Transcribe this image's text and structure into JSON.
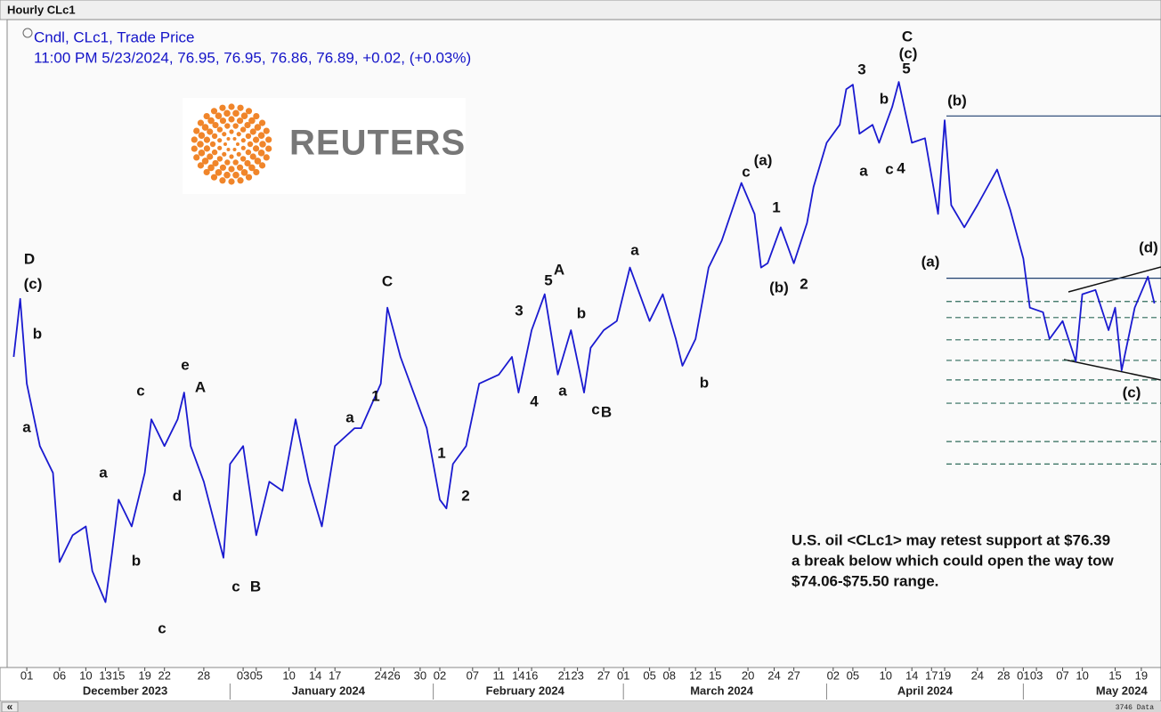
{
  "chart_data": {
    "type": "line",
    "title": "Hourly CLc1",
    "subtitle": "Cndl, CLc1, Trade Price",
    "quote": "11:00 PM 5/23/2024, 76.95, 76.95, 76.86, 76.89, +0.02, (+0.03%)",
    "logo": "REUTERS",
    "status": "3746 Data",
    "scroll_button": "«",
    "x": [
      "2023-11-29",
      "2023-11-30",
      "2023-12-01",
      "2023-12-03",
      "2023-12-05",
      "2023-12-06",
      "2023-12-08",
      "2023-12-10",
      "2023-12-11",
      "2023-12-13",
      "2023-12-14",
      "2023-12-15",
      "2023-12-17",
      "2023-12-19",
      "2023-12-20",
      "2023-12-22",
      "2023-12-24",
      "2023-12-25",
      "2023-12-26",
      "2023-12-28",
      "2023-12-31",
      "2024-01-01",
      "2024-01-03",
      "2024-01-05",
      "2024-01-07",
      "2024-01-09",
      "2024-01-11",
      "2024-01-13",
      "2024-01-15",
      "2024-01-17",
      "2024-01-20",
      "2024-01-21",
      "2024-01-24",
      "2024-01-25",
      "2024-01-27",
      "2024-01-29",
      "2024-01-31",
      "2024-02-02",
      "2024-02-03",
      "2024-02-04",
      "2024-02-06",
      "2024-02-08",
      "2024-02-11",
      "2024-02-13",
      "2024-02-14",
      "2024-02-16",
      "2024-02-17",
      "2024-02-18",
      "2024-02-20",
      "2024-02-22",
      "2024-02-24",
      "2024-02-25",
      "2024-02-27",
      "2024-02-29",
      "2024-03-02",
      "2024-03-03",
      "2024-03-05",
      "2024-03-07",
      "2024-03-09",
      "2024-03-10",
      "2024-03-12",
      "2024-03-14",
      "2024-03-16",
      "2024-03-19",
      "2024-03-21",
      "2024-03-22",
      "2024-03-23",
      "2024-03-25",
      "2024-03-26",
      "2024-03-27",
      "2024-03-29",
      "2024-03-30",
      "2024-04-01",
      "2024-04-03",
      "2024-04-04",
      "2024-04-05",
      "2024-04-06",
      "2024-04-08",
      "2024-04-09",
      "2024-04-11",
      "2024-04-12",
      "2024-04-14",
      "2024-04-16",
      "2024-04-18",
      "2024-04-19",
      "2024-04-20",
      "2024-04-22",
      "2024-04-24",
      "2024-04-27",
      "2024-04-29",
      "2024-05-01",
      "2024-05-02",
      "2024-05-04",
      "2024-05-05",
      "2024-05-07",
      "2024-05-09",
      "2024-05-10",
      "2024-05-12",
      "2024-05-14",
      "2024-05-15",
      "2024-05-16",
      "2024-05-18",
      "2024-05-20",
      "2024-05-21"
    ],
    "series": [
      {
        "name": "CLc1",
        "color": "#1a1ad0",
        "values": [
          77.33,
          79.5,
          76.33,
          74.0,
          73.0,
          69.67,
          70.67,
          71.0,
          69.33,
          68.17,
          70.0,
          72.0,
          71.0,
          73.0,
          75.0,
          74.0,
          75.0,
          76.0,
          74.0,
          72.67,
          69.83,
          73.33,
          74.0,
          70.67,
          72.67,
          72.33,
          75.0,
          72.67,
          71.0,
          74.0,
          74.67,
          74.67,
          76.33,
          79.17,
          77.33,
          76.0,
          74.67,
          72.0,
          71.67,
          73.33,
          74.0,
          76.33,
          76.67,
          77.33,
          76.0,
          78.33,
          79.0,
          79.67,
          76.67,
          78.33,
          76.0,
          77.67,
          78.33,
          78.67,
          80.67,
          80.0,
          78.67,
          79.67,
          78.0,
          77.0,
          78.0,
          80.67,
          81.67,
          83.83,
          82.67,
          80.67,
          80.83,
          82.17,
          81.5,
          80.83,
          82.33,
          83.67,
          85.33,
          86.0,
          87.33,
          87.5,
          85.67,
          86.0,
          85.33,
          86.67,
          87.6,
          85.33,
          85.5,
          82.67,
          86.17,
          83.0,
          82.17,
          83.0,
          84.33,
          82.83,
          81.0,
          79.17,
          79.0,
          78.0,
          78.67,
          77.17,
          79.67,
          79.83,
          78.33,
          79.17,
          76.83,
          79.17,
          80.33,
          79.33
        ]
      }
    ],
    "xlim": [
      "2023-11-28",
      "2024-05-22"
    ],
    "ylim": [
      65.73,
      89.93
    ],
    "xticks": [
      {
        "value": "2023-12-01",
        "label": "01"
      },
      {
        "value": "2023-12-06",
        "label": "06"
      },
      {
        "value": "2023-12-10",
        "label": "10"
      },
      {
        "value": "2023-12-13",
        "label": "13"
      },
      {
        "value": "2023-12-15",
        "label": "15"
      },
      {
        "value": "2023-12-19",
        "label": "19"
      },
      {
        "value": "2023-12-22",
        "label": "22"
      },
      {
        "value": "2023-12-28",
        "label": "28"
      },
      {
        "value": "2024-01-03",
        "label": "03"
      },
      {
        "value": "2024-01-05",
        "label": "05"
      },
      {
        "value": "2024-01-10",
        "label": "10"
      },
      {
        "value": "2024-01-14",
        "label": "14"
      },
      {
        "value": "2024-01-17",
        "label": "17"
      },
      {
        "value": "2024-01-24",
        "label": "24"
      },
      {
        "value": "2024-01-26",
        "label": "26"
      },
      {
        "value": "2024-01-30",
        "label": "30"
      },
      {
        "value": "2024-02-02",
        "label": "02"
      },
      {
        "value": "2024-02-07",
        "label": "07"
      },
      {
        "value": "2024-02-11",
        "label": "11"
      },
      {
        "value": "2024-02-14",
        "label": "14"
      },
      {
        "value": "2024-02-16",
        "label": "16"
      },
      {
        "value": "2024-02-21",
        "label": "21"
      },
      {
        "value": "2024-02-23",
        "label": "23"
      },
      {
        "value": "2024-02-27",
        "label": "27"
      },
      {
        "value": "2024-03-01",
        "label": "01"
      },
      {
        "value": "2024-03-05",
        "label": "05"
      },
      {
        "value": "2024-03-08",
        "label": "08"
      },
      {
        "value": "2024-03-12",
        "label": "12"
      },
      {
        "value": "2024-03-15",
        "label": "15"
      },
      {
        "value": "2024-03-20",
        "label": "20"
      },
      {
        "value": "2024-03-24",
        "label": "24"
      },
      {
        "value": "2024-03-27",
        "label": "27"
      },
      {
        "value": "2024-04-02",
        "label": "02"
      },
      {
        "value": "2024-04-05",
        "label": "05"
      },
      {
        "value": "2024-04-10",
        "label": "10"
      },
      {
        "value": "2024-04-14",
        "label": "14"
      },
      {
        "value": "2024-04-17",
        "label": "17"
      },
      {
        "value": "2024-04-19",
        "label": "19"
      },
      {
        "value": "2024-04-24",
        "label": "24"
      },
      {
        "value": "2024-04-28",
        "label": "28"
      },
      {
        "value": "2024-05-01",
        "label": "01"
      },
      {
        "value": "2024-05-03",
        "label": "03"
      },
      {
        "value": "2024-05-07",
        "label": "07"
      },
      {
        "value": "2024-05-10",
        "label": "10"
      },
      {
        "value": "2024-05-15",
        "label": "15"
      },
      {
        "value": "2024-05-19",
        "label": "19"
      }
    ],
    "x_months": [
      {
        "value": "2023-12-16",
        "label": "December 2023"
      },
      {
        "value": "2024-01-16",
        "label": "January 2024"
      },
      {
        "value": "2024-02-15",
        "label": "February 2024"
      },
      {
        "value": "2024-03-16",
        "label": "March 2024"
      },
      {
        "value": "2024-04-16",
        "label": "April 2024"
      },
      {
        "value": "2024-05-16",
        "label": "May 2024"
      }
    ],
    "levels": [
      {
        "value": 86.33,
        "style": "solid"
      },
      {
        "value": 80.27,
        "style": "solid"
      },
      {
        "value": 79.4,
        "style": "dashed"
      },
      {
        "value": 78.8,
        "style": "dashed"
      },
      {
        "value": 77.97,
        "style": "dashed"
      },
      {
        "value": 77.2,
        "style": "dashed"
      },
      {
        "value": 76.47,
        "style": "dashed"
      },
      {
        "value": 75.6,
        "style": "dashed"
      },
      {
        "value": 74.17,
        "style": "dashed"
      },
      {
        "value": 73.33,
        "style": "dashed"
      }
    ],
    "annotations": [
      "D",
      "(c)",
      "b",
      "a",
      "c",
      "a",
      "b",
      "c",
      "e",
      "A",
      "d",
      "c",
      "B",
      "C",
      "a",
      "1",
      "1",
      "2",
      "3",
      "5",
      "A",
      "b",
      "4",
      "a",
      "c",
      "B",
      "a",
      "b",
      "c",
      "(a)",
      "1",
      "(b)",
      "2",
      "3",
      "b",
      "a",
      "c",
      "4",
      "C",
      "(c)",
      "5",
      "(b)",
      "(a)",
      "(d)",
      "(c)"
    ],
    "note": [
      "U.S. oil <CLc1> may retest support at $76.39",
      "a break below which could open the way tow",
      " $74.06-$75.50 range."
    ]
  }
}
